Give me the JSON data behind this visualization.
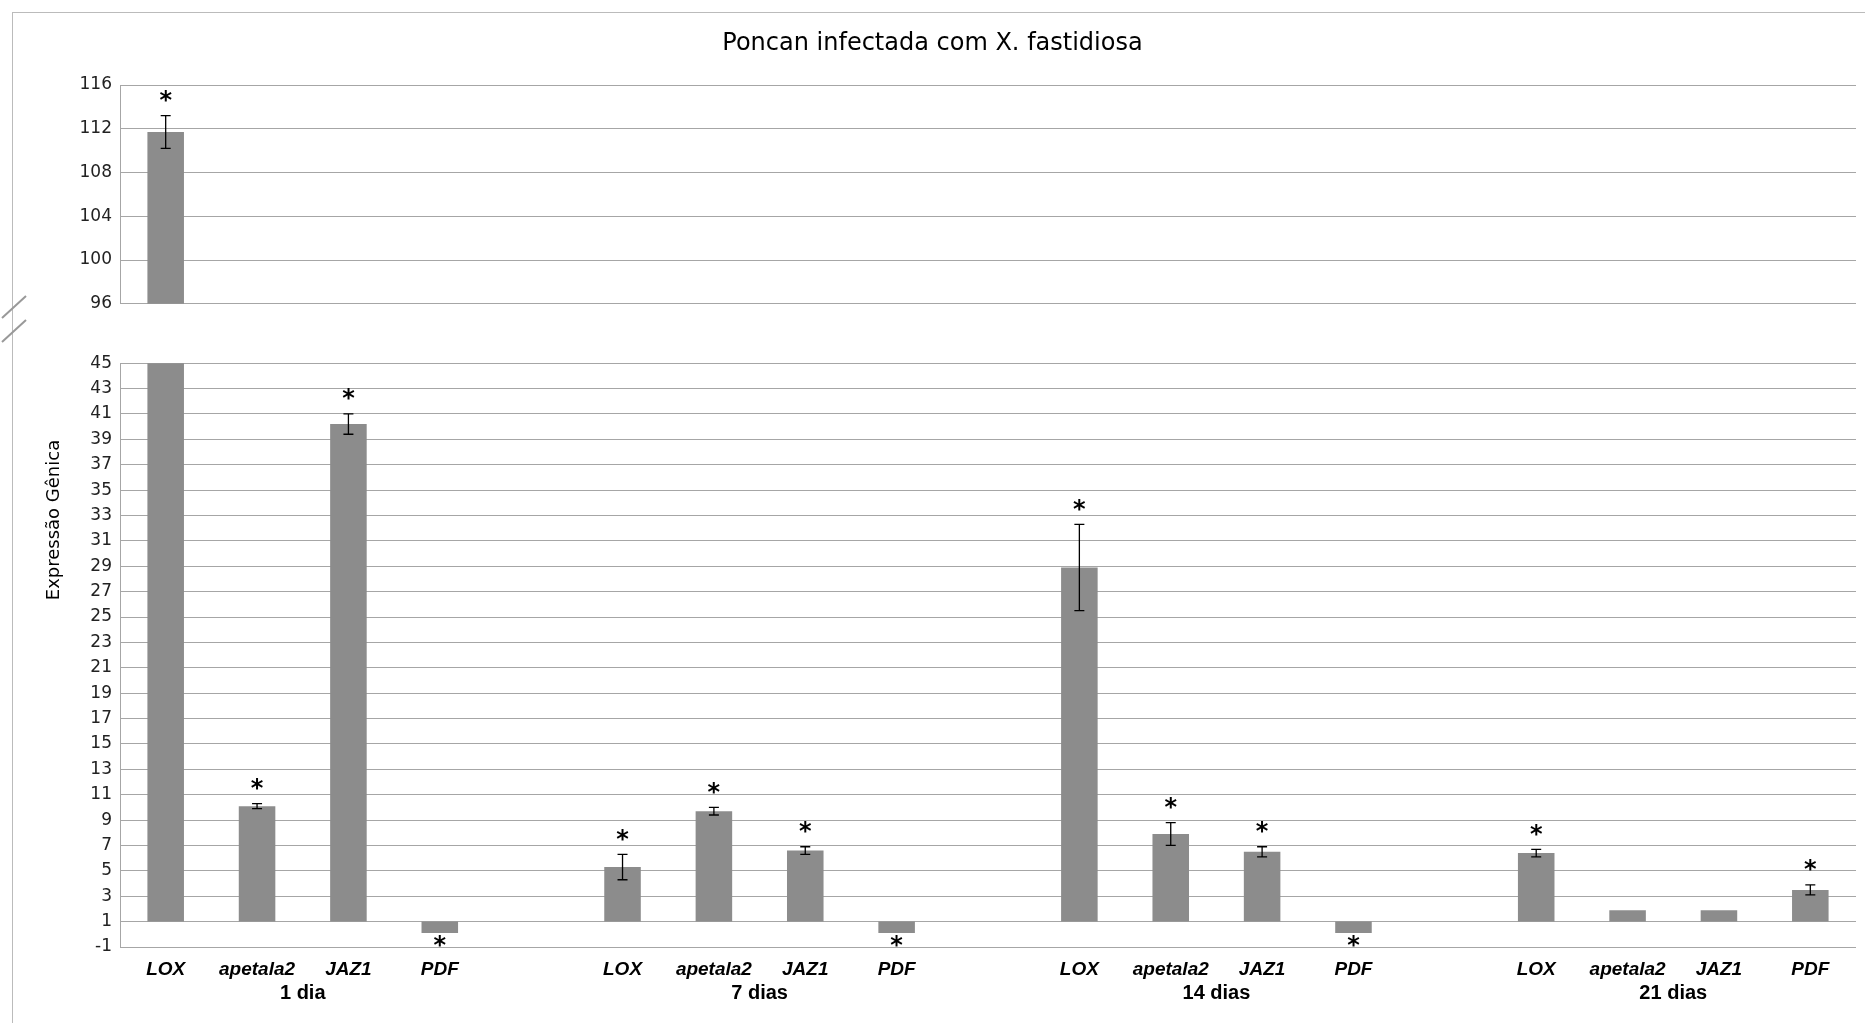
{
  "chart_data": [
    {
      "type": "bar",
      "title": "Poncan infectada com X. fastidiosa",
      "categories": [
        null,
        null,
        null,
        null,
        null,
        null,
        null,
        null,
        null,
        null,
        null,
        null,
        null,
        null,
        null,
        null,
        null,
        null,
        null
      ],
      "base": [
        1,
        null,
        null,
        null,
        null,
        null,
        null,
        null,
        null,
        null,
        null,
        null,
        null,
        null,
        null,
        null,
        null,
        null,
        null
      ],
      "values": [
        110.7,
        null,
        null,
        null,
        null,
        null,
        null,
        null,
        null,
        null,
        null,
        null,
        null,
        null,
        null,
        null,
        null,
        null,
        null
      ],
      "errors": [
        1.5,
        null,
        null,
        null,
        null,
        null,
        null,
        null,
        null,
        null,
        null,
        null,
        null,
        null,
        null,
        null,
        null,
        null,
        null
      ],
      "value_labels": [
        "*",
        null,
        null,
        null,
        null,
        null,
        null,
        null,
        null,
        null,
        null,
        null,
        null,
        null,
        null,
        null,
        null,
        null,
        null
      ],
      "color": "#8c8c8c",
      "ylim": [
        96,
        116
      ],
      "yticks": [
        96,
        100,
        104,
        108,
        112,
        116
      ],
      "tick_labels": "y",
      "grid": true
    },
    {
      "type": "bar",
      "ylabel": "Expressão Gênica",
      "categories": [
        "LOX",
        "apetala2",
        "JAZ1",
        "PDF",
        null,
        "LOX",
        "apetala2",
        "JAZ1",
        "PDF",
        null,
        "LOX",
        "apetala2",
        "JAZ1",
        "PDF",
        null,
        "LOX",
        "apetala2",
        "JAZ1",
        "PDF"
      ],
      "base": [
        1,
        1,
        1,
        1,
        null,
        1,
        1,
        1,
        1,
        null,
        1,
        1,
        1,
        1,
        null,
        1,
        1,
        1,
        1
      ],
      "values": [
        110.7,
        9.1,
        39.2,
        -0.9,
        null,
        4.3,
        8.7,
        5.6,
        -0.9,
        null,
        27.9,
        6.9,
        5.5,
        -0.9,
        null,
        5.4,
        0.9,
        0.9,
        2.5
      ],
      "errors": [
        null,
        0.2,
        0.8,
        null,
        null,
        1.0,
        0.3,
        0.3,
        null,
        null,
        3.4,
        0.9,
        0.4,
        null,
        null,
        0.3,
        null,
        null,
        0.4
      ],
      "value_labels": [
        null,
        "*",
        "*",
        "*",
        null,
        "*",
        "*",
        "*",
        "*",
        null,
        "*",
        "*",
        "*",
        "*",
        null,
        "*",
        null,
        null,
        "*"
      ],
      "color": "#8c8c8c",
      "annotations": [
        "1 dia",
        "7 dias",
        "14 dias",
        "21 dias"
      ],
      "ylim": [
        -1,
        45
      ],
      "yticks": [
        -1,
        1,
        3,
        5,
        7,
        9,
        11,
        13,
        15,
        17,
        19,
        21,
        23,
        25,
        27,
        29,
        31,
        33,
        35,
        37,
        39,
        41,
        43,
        45
      ],
      "grid": true
    }
  ]
}
